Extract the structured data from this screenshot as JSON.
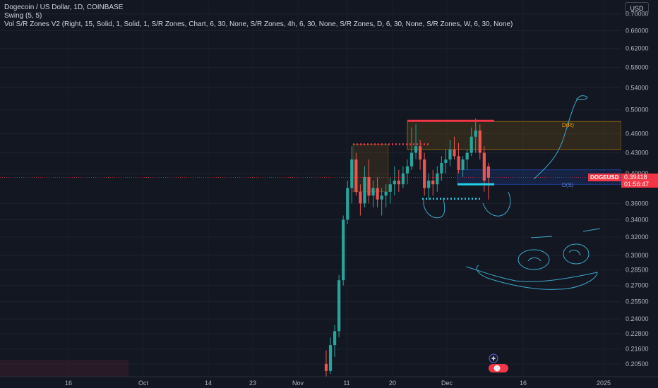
{
  "legend": {
    "line1": "Dogecoin / US Dollar, 1D, COINBASE",
    "line2": "Swing (5, 5)",
    "line3": "Vol S/R Zones V2 (Right, 15, Solid, 1, Solid, 1, S/R Zones, Chart, 6, 30, None, S/R Zones, 4h, 6, 30, None, S/R Zones, D, 6, 30, None, S/R Zones, W, 6, 30, None)"
  },
  "currency_button": "USD",
  "last_price": {
    "symbol": "DOGEUSD",
    "price": "0.39418",
    "countdown": "01:56:47",
    "value": 0.39418
  },
  "zone_labels": {
    "resistance": "D(R)",
    "support": "D(S)"
  },
  "colors": {
    "background": "#131722",
    "up": "#26a69a",
    "down": "#ef5350",
    "zone_orange": "#f7a600",
    "zone_blue": "#2962ff",
    "drawing": "#3ea6c9"
  },
  "chart_data": {
    "type": "candlestick",
    "title": "Dogecoin / US Dollar, 1D, COINBASE",
    "y_axis": {
      "scale": "log",
      "range": [
        0.196,
        0.735
      ],
      "ticks": [
        "0.70000",
        "0.66000",
        "0.62000",
        "0.58000",
        "0.54000",
        "0.50000",
        "0.46000",
        "0.43000",
        "0.40000",
        "0.36000",
        "0.34000",
        "0.32000",
        "0.30000",
        "0.28500",
        "0.27000",
        "0.25500",
        "0.24000",
        "0.22800",
        "0.21600",
        "0.20500"
      ]
    },
    "x_axis": {
      "ticks": [
        "16",
        "Oct",
        "14",
        "23",
        "Nov",
        "11",
        "20",
        "Dec",
        "16",
        "2025"
      ]
    },
    "candles": [
      {
        "o": 0.205,
        "h": 0.215,
        "l": 0.196,
        "c": 0.2
      },
      {
        "o": 0.2,
        "h": 0.225,
        "l": 0.198,
        "c": 0.219
      },
      {
        "o": 0.219,
        "h": 0.235,
        "l": 0.21,
        "c": 0.23
      },
      {
        "o": 0.23,
        "h": 0.28,
        "l": 0.225,
        "c": 0.275
      },
      {
        "o": 0.275,
        "h": 0.345,
        "l": 0.27,
        "c": 0.34
      },
      {
        "o": 0.34,
        "h": 0.39,
        "l": 0.335,
        "c": 0.38
      },
      {
        "o": 0.38,
        "h": 0.44,
        "l": 0.36,
        "c": 0.42
      },
      {
        "o": 0.42,
        "h": 0.43,
        "l": 0.37,
        "c": 0.375
      },
      {
        "o": 0.375,
        "h": 0.385,
        "l": 0.345,
        "c": 0.36
      },
      {
        "o": 0.36,
        "h": 0.41,
        "l": 0.355,
        "c": 0.395
      },
      {
        "o": 0.395,
        "h": 0.42,
        "l": 0.36,
        "c": 0.37
      },
      {
        "o": 0.37,
        "h": 0.39,
        "l": 0.355,
        "c": 0.38
      },
      {
        "o": 0.38,
        "h": 0.395,
        "l": 0.355,
        "c": 0.365
      },
      {
        "o": 0.365,
        "h": 0.38,
        "l": 0.345,
        "c": 0.37
      },
      {
        "o": 0.37,
        "h": 0.385,
        "l": 0.355,
        "c": 0.375
      },
      {
        "o": 0.375,
        "h": 0.395,
        "l": 0.36,
        "c": 0.385
      },
      {
        "o": 0.385,
        "h": 0.41,
        "l": 0.37,
        "c": 0.39
      },
      {
        "o": 0.39,
        "h": 0.405,
        "l": 0.375,
        "c": 0.385
      },
      {
        "o": 0.385,
        "h": 0.41,
        "l": 0.38,
        "c": 0.4
      },
      {
        "o": 0.4,
        "h": 0.42,
        "l": 0.385,
        "c": 0.41
      },
      {
        "o": 0.41,
        "h": 0.47,
        "l": 0.405,
        "c": 0.43
      },
      {
        "o": 0.43,
        "h": 0.475,
        "l": 0.42,
        "c": 0.44
      },
      {
        "o": 0.44,
        "h": 0.45,
        "l": 0.405,
        "c": 0.42
      },
      {
        "o": 0.42,
        "h": 0.43,
        "l": 0.37,
        "c": 0.38
      },
      {
        "o": 0.38,
        "h": 0.4,
        "l": 0.365,
        "c": 0.39
      },
      {
        "o": 0.39,
        "h": 0.405,
        "l": 0.37,
        "c": 0.385
      },
      {
        "o": 0.385,
        "h": 0.41,
        "l": 0.375,
        "c": 0.4
      },
      {
        "o": 0.4,
        "h": 0.425,
        "l": 0.39,
        "c": 0.415
      },
      {
        "o": 0.415,
        "h": 0.435,
        "l": 0.4,
        "c": 0.42
      },
      {
        "o": 0.42,
        "h": 0.45,
        "l": 0.41,
        "c": 0.435
      },
      {
        "o": 0.435,
        "h": 0.455,
        "l": 0.42,
        "c": 0.425
      },
      {
        "o": 0.425,
        "h": 0.445,
        "l": 0.4,
        "c": 0.405
      },
      {
        "o": 0.405,
        "h": 0.425,
        "l": 0.395,
        "c": 0.42
      },
      {
        "o": 0.42,
        "h": 0.435,
        "l": 0.405,
        "c": 0.43
      },
      {
        "o": 0.43,
        "h": 0.47,
        "l": 0.425,
        "c": 0.455
      },
      {
        "o": 0.455,
        "h": 0.485,
        "l": 0.43,
        "c": 0.465
      },
      {
        "o": 0.465,
        "h": 0.475,
        "l": 0.42,
        "c": 0.43
      },
      {
        "o": 0.43,
        "h": 0.44,
        "l": 0.375,
        "c": 0.39
      },
      {
        "o": 0.41,
        "h": 0.415,
        "l": 0.365,
        "c": 0.394
      }
    ],
    "zones": [
      {
        "name": "D(R)",
        "type": "resistance",
        "top": 0.48,
        "bottom": 0.435
      },
      {
        "name": "D(S)",
        "type": "support",
        "top": 0.405,
        "bottom": 0.385
      }
    ],
    "levels": [
      {
        "price": 0.481,
        "style": "solid",
        "color": "#f23645"
      },
      {
        "price": 0.443,
        "style": "dotted",
        "color": "#f23645"
      },
      {
        "price": 0.385,
        "style": "solid",
        "color": "#22d1e6"
      },
      {
        "price": 0.366,
        "style": "dotted",
        "color": "#22d1e6"
      }
    ]
  }
}
